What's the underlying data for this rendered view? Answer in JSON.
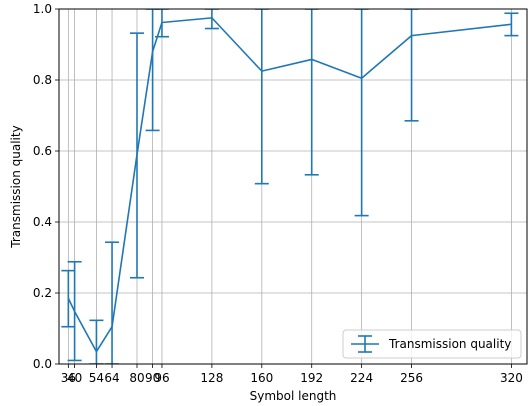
{
  "chart_data": {
    "type": "line",
    "xlabel": "Symbol length",
    "ylabel": "Transmission quality",
    "ylim": [
      0.0,
      1.0
    ],
    "xlim": [
      30,
      330
    ],
    "xscale": "linear",
    "grid": true,
    "legend_position": "lower-right",
    "color": "#1f77b4",
    "x_ticks": [
      36,
      40,
      54,
      64,
      80,
      90,
      96,
      128,
      160,
      192,
      224,
      256,
      320
    ],
    "x_tick_labels": [
      "36",
      "40",
      "54",
      "64",
      "80",
      "90",
      "96",
      "128",
      "160",
      "192",
      "224",
      "256",
      "320"
    ],
    "y_ticks": [
      0.0,
      0.2,
      0.4,
      0.6,
      0.8,
      1.0
    ],
    "y_tick_labels": [
      "0.0",
      "0.2",
      "0.4",
      "0.6",
      "0.8",
      "1.0"
    ],
    "series": [
      {
        "name": "Transmission quality",
        "points": [
          {
            "x": 36,
            "y": 0.185,
            "lo": 0.105,
            "hi": 0.263
          },
          {
            "x": 40,
            "y": 0.148,
            "lo": 0.01,
            "hi": 0.288
          },
          {
            "x": 54,
            "y": 0.035,
            "lo": 0.0,
            "hi": 0.123
          },
          {
            "x": 64,
            "y": 0.105,
            "lo": 0.0,
            "hi": 0.343
          },
          {
            "x": 80,
            "y": 0.59,
            "lo": 0.243,
            "hi": 0.932
          },
          {
            "x": 90,
            "y": 0.88,
            "lo": 0.658,
            "hi": 1.0
          },
          {
            "x": 96,
            "y": 0.962,
            "lo": 0.922,
            "hi": 1.0
          },
          {
            "x": 128,
            "y": 0.975,
            "lo": 0.945,
            "hi": 1.0
          },
          {
            "x": 160,
            "y": 0.825,
            "lo": 0.508,
            "hi": 1.0
          },
          {
            "x": 192,
            "y": 0.858,
            "lo": 0.533,
            "hi": 1.0
          },
          {
            "x": 224,
            "y": 0.805,
            "lo": 0.418,
            "hi": 1.0
          },
          {
            "x": 256,
            "y": 0.925,
            "lo": 0.685,
            "hi": 1.0
          },
          {
            "x": 320,
            "y": 0.957,
            "lo": 0.925,
            "hi": 0.988
          }
        ]
      }
    ]
  }
}
